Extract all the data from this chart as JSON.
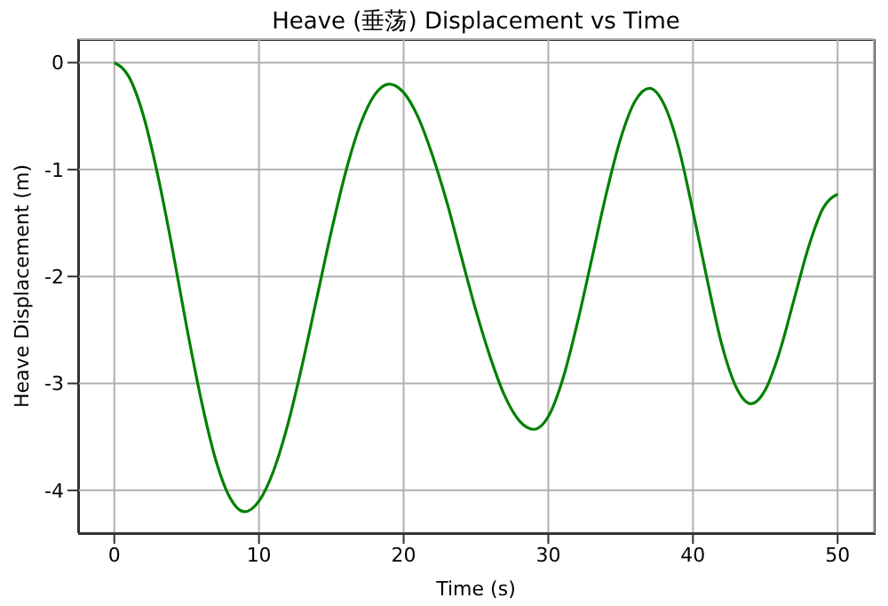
{
  "chart_data": {
    "type": "line",
    "title": "Heave (垂荡) Displacement vs Time",
    "xlabel": "Time (s)",
    "ylabel": "Heave Displacement (m)",
    "x": [
      0,
      1,
      2,
      3,
      4,
      5,
      6,
      7,
      8,
      9,
      10,
      11,
      12,
      13,
      14,
      15,
      16,
      17,
      18,
      19,
      20,
      21,
      22,
      23,
      24,
      25,
      26,
      27,
      28,
      29,
      30,
      31,
      32,
      33,
      34,
      35,
      36,
      37,
      38,
      39,
      40,
      41,
      42,
      43,
      44,
      45,
      46,
      47,
      48,
      49,
      50
    ],
    "series": [
      {
        "color": "#008000",
        "values": [
          0,
          -0.13,
          -0.49,
          -1.05,
          -1.73,
          -2.47,
          -3.15,
          -3.71,
          -4.07,
          -4.2,
          -4.1,
          -3.82,
          -3.38,
          -2.82,
          -2.2,
          -1.58,
          -1.02,
          -0.58,
          -0.3,
          -0.2,
          -0.28,
          -0.51,
          -0.87,
          -1.31,
          -1.82,
          -2.32,
          -2.76,
          -3.12,
          -3.35,
          -3.43,
          -3.31,
          -2.96,
          -2.44,
          -1.84,
          -1.23,
          -0.71,
          -0.36,
          -0.24,
          -0.39,
          -0.79,
          -1.39,
          -2.04,
          -2.64,
          -3.04,
          -3.19,
          -3.06,
          -2.7,
          -2.21,
          -1.72,
          -1.36,
          -1.23
        ]
      }
    ],
    "xlim": [
      -2.5,
      52.5
    ],
    "xticks": [
      0,
      10,
      20,
      30,
      40,
      50
    ],
    "ylim": [
      -4.4,
      0.22
    ],
    "yticks": [
      -4,
      -3,
      -2,
      -1,
      0
    ],
    "grid": true,
    "legend": false,
    "marker": "none",
    "line_style": "solid"
  }
}
